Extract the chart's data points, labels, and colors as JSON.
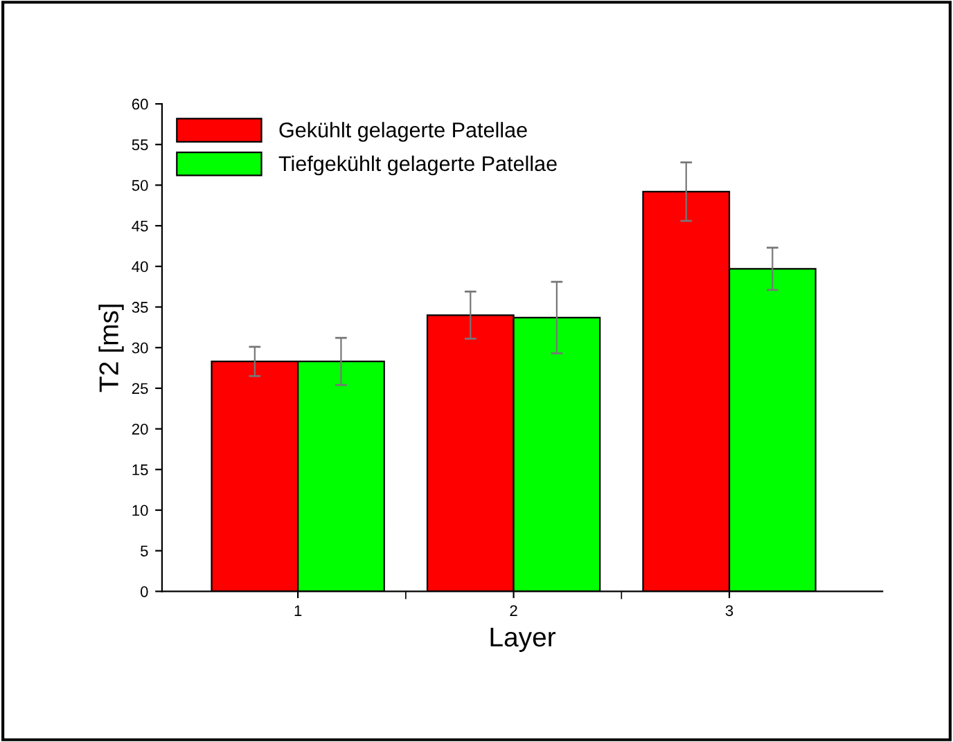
{
  "chart_data": {
    "type": "bar",
    "xlabel": "Layer",
    "ylabel": "T2 [ms]",
    "categories": [
      "1",
      "2",
      "3"
    ],
    "series": [
      {
        "name": "Gekühlt gelagerte Patellae",
        "color": "#ff0000",
        "values": [
          28.3,
          34.0,
          49.2
        ],
        "errors": [
          1.8,
          2.9,
          3.6
        ]
      },
      {
        "name": "Tiefgekühlt gelagerte Patellae",
        "color": "#00ff00",
        "values": [
          28.3,
          33.7,
          39.7
        ],
        "errors": [
          2.9,
          4.4,
          2.6
        ]
      }
    ],
    "ylim": [
      0,
      60
    ],
    "yticks": [
      0,
      5,
      10,
      15,
      20,
      25,
      30,
      35,
      40,
      45,
      50,
      55,
      60
    ],
    "grid": false,
    "legend": "top left"
  }
}
